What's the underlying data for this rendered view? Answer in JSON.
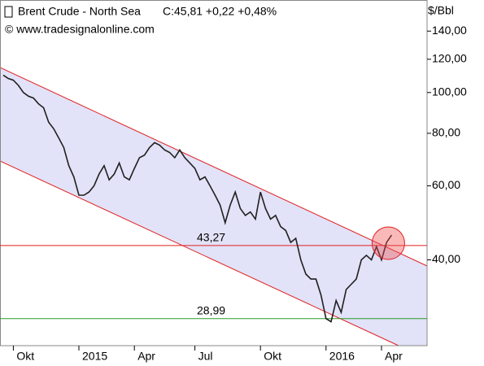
{
  "chart_data": {
    "type": "line",
    "title": "Brent Crude - North Sea",
    "quote": "C:45,81 +0,22 +0,48%",
    "source": "© www.tradesignalonline.com",
    "y_unit": "$/Bbl",
    "log_scale": true,
    "color": "#202020",
    "quote_color": "#2aa52a",
    "ylim": [
      25,
      166
    ],
    "yticks": [
      {
        "value": 40,
        "label": "40,00"
      },
      {
        "value": 60,
        "label": "60,00"
      },
      {
        "value": 80,
        "label": "80,00"
      },
      {
        "value": 100,
        "label": "100,00"
      },
      {
        "value": 120,
        "label": "120,00"
      },
      {
        "value": 140,
        "label": "140,00"
      }
    ],
    "categories": [
      null,
      null,
      "Okt",
      null,
      null,
      null,
      null,
      null,
      null,
      null,
      null,
      null,
      null,
      null,
      null,
      "2015",
      null,
      null,
      null,
      null,
      null,
      null,
      null,
      null,
      null,
      null,
      "Apr",
      null,
      null,
      null,
      null,
      null,
      null,
      null,
      null,
      null,
      null,
      null,
      "Jul",
      null,
      null,
      null,
      null,
      null,
      null,
      null,
      null,
      null,
      null,
      null,
      null,
      "Okt",
      null,
      null,
      null,
      null,
      null,
      null,
      null,
      null,
      null,
      null,
      null,
      null,
      "2016",
      null,
      null,
      null,
      null,
      null,
      null,
      null,
      null,
      null,
      null,
      "Apr",
      null,
      null,
      null,
      null,
      null,
      null,
      null,
      null,
      null
    ],
    "values": [
      110,
      108,
      107,
      104,
      100,
      98,
      97,
      94,
      92,
      85,
      82,
      78,
      74,
      67,
      63,
      57,
      57,
      58,
      60,
      64,
      67,
      62,
      64,
      68,
      63,
      62,
      66,
      70,
      71,
      74,
      76,
      75,
      73,
      72,
      70,
      73,
      70,
      68,
      66,
      62,
      63,
      60,
      57,
      54,
      49,
      54,
      58,
      53,
      51,
      52,
      50,
      58,
      53,
      50,
      51,
      48,
      47,
      44,
      45,
      40,
      37,
      36,
      36,
      33,
      29,
      28.5,
      32,
      30,
      34,
      35,
      36,
      40,
      41,
      40,
      43,
      40,
      44,
      45.81,
      null,
      null,
      null,
      null,
      null,
      null,
      null
    ],
    "hlines": [
      {
        "value": 43.27,
        "label": "43,27",
        "color": "#e02020"
      },
      {
        "value": 28.99,
        "label": "28,99",
        "color": "#2a9a2a"
      }
    ]
  }
}
